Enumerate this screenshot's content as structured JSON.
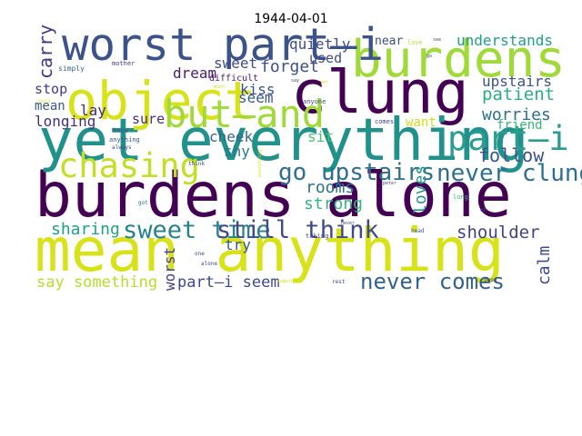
{
  "chart_data": {
    "type": "wordcloud",
    "title": "1944-04-01",
    "xlabel": "",
    "ylabel": "",
    "grid": false,
    "background": "#ffffff",
    "colormap": "viridis",
    "words": [
      {
        "text": "burdens",
        "weight": 1.0,
        "color": "#440154"
      },
      {
        "text": "alone",
        "weight": 1.0,
        "color": "#440154"
      },
      {
        "text": "mean anything",
        "weight": 0.97,
        "color": "#d8e219"
      },
      {
        "text": "clung",
        "weight": 0.96,
        "color": "#440154"
      },
      {
        "text": "yet everything",
        "weight": 0.94,
        "color": "#21918c"
      },
      {
        "text": "object",
        "weight": 0.85,
        "color": "#d8e219"
      },
      {
        "text": "burdens",
        "weight": 0.83,
        "color": "#a0da39"
      },
      {
        "text": "worst part—i",
        "weight": 0.72,
        "color": "#3b528b"
      },
      {
        "text": "but—and",
        "weight": 0.62,
        "color": "#a0da39"
      },
      {
        "text": "chasing",
        "weight": 0.55,
        "color": "#c2df23"
      },
      {
        "text": "part—i",
        "weight": 0.55,
        "color": "#2a9d8f"
      },
      {
        "text": "sweet time",
        "weight": 0.4,
        "color": "#26828e"
      },
      {
        "text": "still think",
        "weight": 0.4,
        "color": "#3e4a89"
      },
      {
        "text": "never clung",
        "weight": 0.38,
        "color": "#2d6f8e"
      },
      {
        "text": "go upstairs",
        "weight": 0.38,
        "color": "#2e6e8e"
      },
      {
        "text": "never comes",
        "weight": 0.36,
        "color": "#33638d"
      },
      {
        "text": "carry",
        "weight": 0.3,
        "color": "#443983"
      },
      {
        "text": "follow",
        "weight": 0.3,
        "color": "#3b528b"
      },
      {
        "text": "patient",
        "weight": 0.28,
        "color": "#29af7f"
      },
      {
        "text": "shoulder",
        "weight": 0.28,
        "color": "#404387"
      },
      {
        "text": "sharing",
        "weight": 0.27,
        "color": "#1fa187"
      },
      {
        "text": "forget",
        "weight": 0.27,
        "color": "#3b528b"
      },
      {
        "text": "strong",
        "weight": 0.26,
        "color": "#35b779"
      },
      {
        "text": "rooms",
        "weight": 0.26,
        "color": "#2c728e"
      },
      {
        "text": "worries",
        "weight": 0.26,
        "color": "#2d6f8e"
      },
      {
        "text": "loves",
        "weight": 0.26,
        "color": "#21918c"
      },
      {
        "text": "calm",
        "weight": 0.26,
        "color": "#3e4c8a"
      },
      {
        "text": "say something",
        "weight": 0.25,
        "color": "#b5de2b"
      },
      {
        "text": "part—i seem",
        "weight": 0.25,
        "color": "#3f4889"
      },
      {
        "text": "understands",
        "weight": 0.24,
        "color": "#1f9e89"
      },
      {
        "text": "upstairs",
        "weight": 0.24,
        "color": "#3b528b"
      },
      {
        "text": "try",
        "weight": 0.24,
        "color": "#38588c"
      },
      {
        "text": "worst",
        "weight": 0.23,
        "color": "#443983"
      },
      {
        "text": "quietly",
        "weight": 0.23,
        "color": "#3e4a89"
      },
      {
        "text": "sweet",
        "weight": 0.23,
        "color": "#3e4a89"
      },
      {
        "text": "dream",
        "weight": 0.23,
        "color": "#481b6d"
      },
      {
        "text": "kiss",
        "weight": 0.23,
        "color": "#3b528b"
      },
      {
        "text": "seem",
        "weight": 0.23,
        "color": "#38598c"
      },
      {
        "text": "lay",
        "weight": 0.23,
        "color": "#472c7a"
      },
      {
        "text": "longing",
        "weight": 0.23,
        "color": "#46307e"
      },
      {
        "text": "cheek",
        "weight": 0.23,
        "color": "#31678e"
      },
      {
        "text": "shy",
        "weight": 0.23,
        "color": "#2a788e"
      },
      {
        "text": "sit",
        "weight": 0.23,
        "color": "#4ac16d"
      },
      {
        "text": "sure",
        "weight": 0.22,
        "color": "#472d7b"
      },
      {
        "text": "stop",
        "weight": 0.22,
        "color": "#453781"
      },
      {
        "text": "used",
        "weight": 0.22,
        "color": "#3e4a89"
      },
      {
        "text": "mean",
        "weight": 0.21,
        "color": "#38598c"
      },
      {
        "text": "want",
        "weight": 0.2,
        "color": "#cde11d"
      },
      {
        "text": "friend",
        "weight": 0.2,
        "color": "#35b779"
      },
      {
        "text": "near",
        "weight": 0.19,
        "color": "#3e4a89"
      },
      {
        "text": "love",
        "weight": 0.11,
        "color": "#b5de2b"
      },
      {
        "text": "difficult",
        "weight": 0.14,
        "color": "#481a6c"
      },
      {
        "text": "simply",
        "weight": 0.12,
        "color": "#31688e"
      },
      {
        "text": "mother",
        "weight": 0.11,
        "color": "#443a83"
      },
      {
        "text": "anyone",
        "weight": 0.11,
        "color": "#3e4a89"
      },
      {
        "text": "comes",
        "weight": 0.11,
        "color": "#404588"
      },
      {
        "text": "long",
        "weight": 0.11,
        "color": "#35b779"
      },
      {
        "text": "taking",
        "weight": 0.11,
        "color": "#424086"
      },
      {
        "text": "know",
        "weight": 0.1,
        "color": "#3b528b"
      },
      {
        "text": "anything",
        "weight": 0.1,
        "color": "#3b528b"
      },
      {
        "text": "always",
        "weight": 0.09,
        "color": "#3e4a89"
      },
      {
        "text": "think",
        "weight": 0.09,
        "color": "#414487"
      },
      {
        "text": "one",
        "weight": 0.09,
        "color": "#3e4a89"
      },
      {
        "text": "alone",
        "weight": 0.09,
        "color": "#3e4a89"
      },
      {
        "text": "rest",
        "weight": 0.09,
        "color": "#3e4a89"
      },
      {
        "text": "good",
        "weight": 0.09,
        "color": "#3e4a89"
      },
      {
        "text": "head",
        "weight": 0.09,
        "color": "#3b528b"
      },
      {
        "text": "oh",
        "weight": 0.09,
        "color": "#3e4a89"
      },
      {
        "text": "got",
        "weight": 0.09,
        "color": "#2c728e"
      },
      {
        "text": "peter",
        "weight": 0.08,
        "color": "#414487"
      },
      {
        "text": "never",
        "weight": 0.08,
        "color": "#414487"
      },
      {
        "text": "say",
        "weight": 0.08,
        "color": "#414487"
      },
      {
        "text": "yet",
        "weight": 0.08,
        "color": "#d8e219"
      },
      {
        "text": "much",
        "weight": 0.07,
        "color": "#d8e219"
      },
      {
        "text": "could",
        "weight": 0.07,
        "color": "#d8e219"
      },
      {
        "text": "go",
        "weight": 0.07,
        "color": "#3e4a89"
      },
      {
        "text": "see",
        "weight": 0.07,
        "color": "#3e4a89"
      },
      {
        "text": "everything",
        "weight": 0.08,
        "color": "#d8e219"
      },
      {
        "text": "something",
        "weight": 0.07,
        "color": "#d8e219"
      }
    ]
  }
}
